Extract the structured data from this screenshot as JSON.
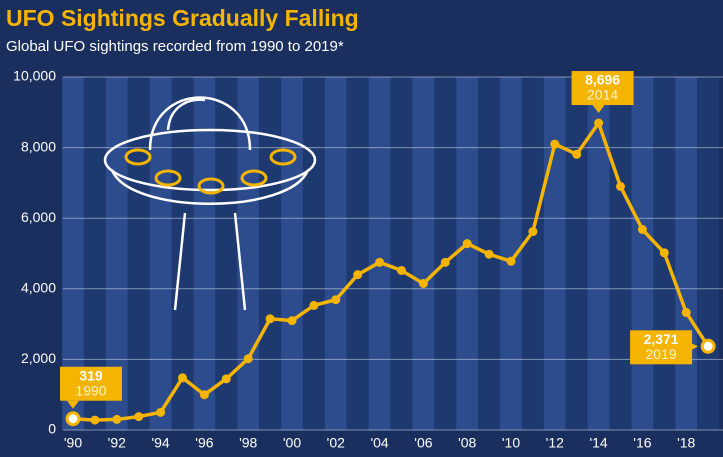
{
  "chart_data": {
    "type": "line",
    "title": "UFO Sightings Gradually Falling",
    "subtitle": "Global UFO sightings recorded from 1990 to 2019*",
    "categories": [
      "'90",
      null,
      "'92",
      null,
      "'94",
      null,
      "'96",
      null,
      "'98",
      null,
      "'00",
      null,
      "'02",
      null,
      "'04",
      null,
      "'06",
      null,
      "'08",
      null,
      "'10",
      null,
      "'12",
      null,
      "'14",
      null,
      "'16",
      null,
      "'18",
      null
    ],
    "values": [
      319,
      280,
      300,
      380,
      500,
      1480,
      1000,
      1450,
      2020,
      3150,
      3100,
      3530,
      3690,
      4400,
      4750,
      4520,
      4150,
      4750,
      5280,
      4980,
      4780,
      5620,
      8100,
      7810,
      8696,
      6900,
      5680,
      5020,
      3330,
      2371
    ],
    "value_labels": [
      "319",
      null,
      null,
      null,
      null,
      null,
      null,
      null,
      null,
      null,
      null,
      null,
      null,
      null,
      null,
      null,
      null,
      null,
      null,
      null,
      null,
      null,
      null,
      null,
      "8,696",
      null,
      null,
      null,
      null,
      "2,371"
    ],
    "year_labels": [
      "1990",
      null,
      null,
      null,
      null,
      null,
      null,
      null,
      null,
      null,
      null,
      null,
      null,
      null,
      null,
      null,
      null,
      null,
      null,
      null,
      null,
      null,
      null,
      null,
      "2014",
      null,
      null,
      null,
      null,
      "2019"
    ],
    "color": "#f5b400",
    "ylim": [
      0,
      10000
    ],
    "yticks": [
      0,
      {
        "value": 2000,
        "label": "2,000"
      },
      {
        "value": 4000,
        "label": "4,000"
      },
      {
        "value": 6000,
        "label": "6,000"
      },
      {
        "value": 8000,
        "label": "8,000"
      },
      {
        "value": 10000,
        "label": "10,000"
      }
    ],
    "grid": true
  }
}
